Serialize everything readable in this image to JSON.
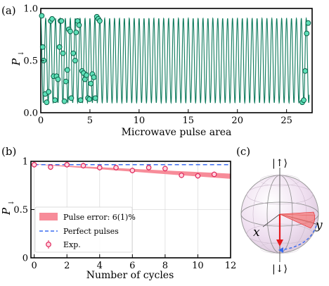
{
  "panels": {
    "a": {
      "label": "(a)"
    },
    "b": {
      "label": "(b)"
    },
    "c": {
      "label": "(c)"
    }
  },
  "colors": {
    "rabi_line": "#0d7a5c",
    "rabi_marker_fill": "#5ee0b8",
    "rabi_marker_edge": "#0b5e46",
    "exp_marker_edge": "#e0245a",
    "exp_marker_fill": "#ffd6e0",
    "pulse_error_band": "#f78c99",
    "perfect_line": "#3a6cf0",
    "sphere_fill": "#f3e6f3",
    "sphere_edge": "#999999",
    "state_vector": "#e3191e",
    "cone_fill": "#f47a7a"
  },
  "chart_data": [
    {
      "panel": "a",
      "type": "scatter",
      "xlabel": "Microwave pulse area",
      "ylabel": "P",
      "ylabel_sub": "↓",
      "xlim": [
        0,
        27.6
      ],
      "ylim": [
        0,
        1.0
      ],
      "xticks": [
        "0",
        "5",
        "10",
        "15",
        "20",
        "25"
      ],
      "yticks": [
        "0.0",
        "0.5",
        "1.0"
      ],
      "grid": false,
      "model": {
        "frequency": 2.0,
        "amplitude": 0.405,
        "offset": 0.5,
        "x_range": [
          0.0,
          27.3
        ]
      },
      "series": [
        {
          "x": [
            0.1,
            0.2,
            0.3,
            0.45,
            0.6,
            0.8,
            1.0,
            1.15,
            1.3,
            1.45,
            1.6,
            1.75,
            1.9,
            2.0,
            2.1,
            2.25,
            2.4,
            2.55,
            2.7,
            2.85,
            3.0,
            3.1,
            3.3,
            3.5,
            3.6,
            3.75,
            3.9,
            4.05,
            4.2,
            4.35,
            4.5,
            4.65,
            4.8,
            4.95,
            5.1,
            5.25,
            5.4,
            5.55,
            5.7,
            5.85,
            6.0,
            26.6,
            26.75,
            26.9,
            27.05,
            27.2
          ],
          "y": [
            0.93,
            0.63,
            0.5,
            0.18,
            0.1,
            0.2,
            0.88,
            0.9,
            0.35,
            0.12,
            0.35,
            0.32,
            0.63,
            0.88,
            0.88,
            0.57,
            0.11,
            0.3,
            0.41,
            0.8,
            0.78,
            0.14,
            0.57,
            0.5,
            0.77,
            0.88,
            0.84,
            0.12,
            0.4,
            0.38,
            0.32,
            0.36,
            0.14,
            0.13,
            0.28,
            0.37,
            0.34,
            0.14,
            0.92,
            0.9,
            0.88,
            0.1,
            0.12,
            0.4,
            0.76,
            0.86
          ]
        }
      ]
    },
    {
      "panel": "b",
      "type": "line",
      "xlabel": "Number of cycles",
      "ylabel": "P",
      "ylabel_sub": "↓",
      "xlim": [
        -0.2,
        12
      ],
      "ylim": [
        0,
        1.0
      ],
      "xticks": [
        "0",
        "2",
        "4",
        "6",
        "8",
        "10",
        "12"
      ],
      "yticks": [
        "0",
        "0.5",
        "1"
      ],
      "grid": true,
      "legend": {
        "position": "bottom-left",
        "entries": [
          "Pulse error: 6(1)%",
          "Perfect pulses",
          "Exp."
        ]
      },
      "series": [
        {
          "name": "Pulse error: 6(1)%",
          "kind": "band",
          "x": [
            0,
            12
          ],
          "y_upper": [
            0.972,
            0.872
          ],
          "y_lower": [
            0.968,
            0.818
          ]
        },
        {
          "name": "Perfect pulses",
          "kind": "dashed",
          "x": [
            0,
            12
          ],
          "y": [
            0.965,
            0.965
          ]
        },
        {
          "name": "Exp.",
          "kind": "markers",
          "x": [
            0,
            1,
            2,
            3,
            4,
            5,
            6,
            7,
            8,
            9,
            10,
            11
          ],
          "y": [
            0.965,
            0.94,
            0.965,
            0.955,
            0.935,
            0.935,
            0.905,
            0.935,
            0.925,
            0.855,
            0.85,
            0.865
          ]
        }
      ]
    }
  ],
  "bloch": {
    "ket_top": "|↑⟩",
    "ket_bottom": "|↓⟩",
    "axis_x": "x",
    "axis_y": "y"
  }
}
